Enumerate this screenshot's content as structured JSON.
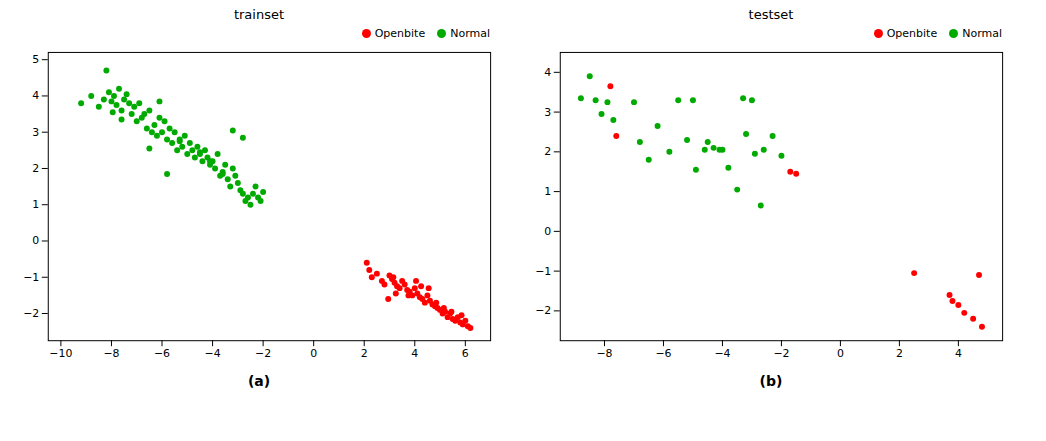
{
  "chart_data": [
    {
      "type": "scatter",
      "title": "trainset",
      "annotations": [
        "(a)"
      ],
      "series": [
        {
          "name": "Openbite",
          "color": "#ff0000",
          "x": [
            2.1,
            2.2,
            2.3,
            2.5,
            2.7,
            2.8,
            3.0,
            3.1,
            3.2,
            3.3,
            3.4,
            3.5,
            3.6,
            3.7,
            3.8,
            3.9,
            4.0,
            4.1,
            4.2,
            4.3,
            4.4,
            4.5,
            4.6,
            4.7,
            4.8,
            4.9,
            5.0,
            5.1,
            5.2,
            5.3,
            5.4,
            5.5,
            5.6,
            5.7,
            5.8,
            5.9,
            6.0,
            6.1,
            6.2,
            3.15,
            4.05,
            4.55,
            3.25,
            2.95,
            3.75,
            4.85,
            5.15,
            5.45,
            5.85,
            4.25
          ],
          "y": [
            -0.6,
            -0.8,
            -1.0,
            -0.9,
            -1.1,
            -1.2,
            -0.95,
            -1.05,
            -1.15,
            -1.25,
            -1.3,
            -1.1,
            -1.2,
            -1.35,
            -1.4,
            -1.5,
            -1.3,
            -1.45,
            -1.55,
            -1.6,
            -1.7,
            -1.5,
            -1.65,
            -1.75,
            -1.8,
            -1.85,
            -1.9,
            -2.0,
            -1.95,
            -2.1,
            -2.0,
            -2.15,
            -2.2,
            -2.1,
            -2.25,
            -2.3,
            -2.2,
            -2.35,
            -2.4,
            -1.0,
            -1.1,
            -1.3,
            -1.45,
            -1.6,
            -1.5,
            -1.7,
            -1.85,
            -1.95,
            -2.05,
            -1.25
          ]
        },
        {
          "name": "Normal",
          "color": "#00aa00",
          "x": [
            -9.2,
            -8.8,
            -8.5,
            -8.3,
            -8.1,
            -8.0,
            -7.9,
            -7.8,
            -7.7,
            -7.6,
            -7.5,
            -7.4,
            -7.3,
            -7.2,
            -7.1,
            -7.0,
            -6.9,
            -6.8,
            -6.7,
            -6.6,
            -6.5,
            -6.4,
            -6.3,
            -6.2,
            -6.1,
            -6.0,
            -5.9,
            -5.8,
            -5.7,
            -5.6,
            -5.5,
            -5.4,
            -5.3,
            -5.2,
            -5.1,
            -5.0,
            -4.9,
            -4.8,
            -4.7,
            -4.6,
            -4.5,
            -4.4,
            -4.3,
            -4.2,
            -4.1,
            -4.0,
            -3.9,
            -3.8,
            -3.7,
            -3.6,
            -3.5,
            -3.4,
            -3.3,
            -3.2,
            -3.1,
            -3.0,
            -2.9,
            -2.8,
            -2.7,
            -2.6,
            -2.5,
            -2.4,
            -2.3,
            -2.2,
            -2.1,
            -2.0,
            -8.2,
            -7.95,
            -7.6,
            -6.5,
            -5.3,
            -4.1,
            -3.2,
            -5.8,
            -4.5,
            -6.1,
            -3.6,
            -2.8
          ],
          "y": [
            3.8,
            4.0,
            3.7,
            3.9,
            4.1,
            3.85,
            4.0,
            3.75,
            4.2,
            3.6,
            3.9,
            4.05,
            3.8,
            3.5,
            3.7,
            3.3,
            3.8,
            3.4,
            3.5,
            3.1,
            3.6,
            3.0,
            3.2,
            2.9,
            3.4,
            3.0,
            3.3,
            2.8,
            3.1,
            2.7,
            3.0,
            2.5,
            2.8,
            2.6,
            2.9,
            2.4,
            2.7,
            2.5,
            2.3,
            2.6,
            2.4,
            2.2,
            2.5,
            2.3,
            2.1,
            2.2,
            2.0,
            2.4,
            1.8,
            1.9,
            2.1,
            1.7,
            1.5,
            2.0,
            1.8,
            1.6,
            1.4,
            1.3,
            1.1,
            1.2,
            1.0,
            1.3,
            1.5,
            1.2,
            1.1,
            1.35,
            4.7,
            3.55,
            3.35,
            2.55,
            2.75,
            2.2,
            3.05,
            1.85,
            2.45,
            3.85,
            1.85,
            2.85
          ]
        }
      ],
      "xlim": [
        -10.5,
        7.0
      ],
      "ylim": [
        -2.75,
        5.2
      ],
      "xticks": [
        -10,
        -8,
        -6,
        -4,
        -2,
        0,
        2,
        4,
        6
      ],
      "yticks": [
        -2,
        -1,
        0,
        1,
        2,
        3,
        4,
        5
      ],
      "grid": false,
      "legend": "upper right",
      "marker": "circle"
    },
    {
      "type": "scatter",
      "title": "testset",
      "annotations": [
        "(b)"
      ],
      "series": [
        {
          "name": "Openbite",
          "color": "#ff0000",
          "x": [
            -7.8,
            -7.6,
            -1.7,
            -1.5,
            2.5,
            3.7,
            3.8,
            4.0,
            4.2,
            4.5,
            4.7,
            4.8
          ],
          "y": [
            3.65,
            2.4,
            1.5,
            1.45,
            -1.05,
            -1.6,
            -1.75,
            -1.85,
            -2.05,
            -2.2,
            -1.1,
            -2.4
          ]
        },
        {
          "name": "Normal",
          "color": "#00aa00",
          "x": [
            -8.8,
            -8.5,
            -8.3,
            -8.1,
            -7.9,
            -7.7,
            -7.0,
            -6.5,
            -6.2,
            -5.8,
            -5.5,
            -5.2,
            -4.9,
            -4.6,
            -4.3,
            -4.1,
            -3.8,
            -3.5,
            -3.2,
            -2.9,
            -2.6,
            -2.3,
            -2.0,
            -6.8,
            -4.5,
            -3.0,
            -5.0,
            -4.0,
            -3.3,
            -2.7
          ],
          "y": [
            3.35,
            3.9,
            3.3,
            2.95,
            3.25,
            2.8,
            3.25,
            1.8,
            2.65,
            2.0,
            3.3,
            2.3,
            1.55,
            2.05,
            2.1,
            2.05,
            1.6,
            1.05,
            2.45,
            1.95,
            2.05,
            2.4,
            1.9,
            2.25,
            2.25,
            3.3,
            3.3,
            2.05,
            3.35,
            0.65
          ]
        }
      ],
      "xlim": [
        -9.5,
        5.5
      ],
      "ylim": [
        -2.75,
        4.5
      ],
      "xticks": [
        -8,
        -6,
        -4,
        -2,
        0,
        2,
        4
      ],
      "yticks": [
        -2,
        -1,
        0,
        1,
        2,
        3,
        4
      ],
      "grid": false,
      "legend": "upper right",
      "marker": "circle"
    }
  ]
}
